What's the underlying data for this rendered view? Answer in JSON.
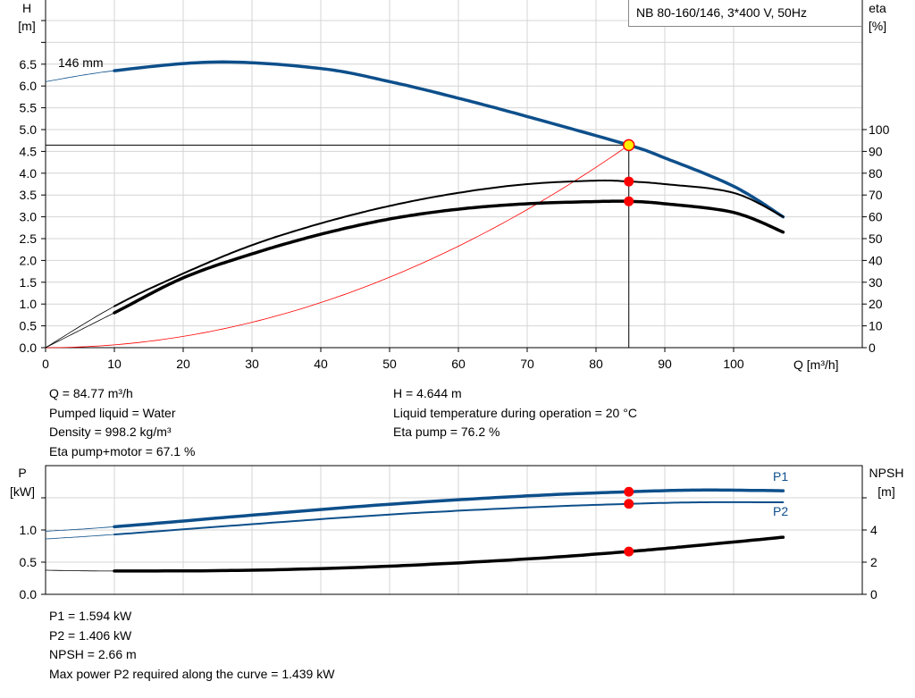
{
  "colors": {
    "grid": "#d4d4d4",
    "head_curve": "#0d4f8b",
    "eta_curve": "#000000",
    "system_curve": "#ff0000",
    "duty_point": "#ff0000",
    "duty_point_highlight": "#ffee00",
    "power_curve": "#0d4f8b",
    "npsh_curve": "#000000"
  },
  "title_box": "NB 80-160/146, 3*400 V, 50Hz",
  "chart_data": [
    {
      "type": "line",
      "xlabel": "Q [m³/h]",
      "ylabel_left": "H",
      "ylabel_left_unit": "[m]",
      "ylabel_right": "eta",
      "ylabel_right_unit": "[%]",
      "xlim": [
        0,
        115
      ],
      "ylim_left": [
        0,
        7.5
      ],
      "ylim_right": [
        0,
        153.7
      ],
      "xticks": [
        "0",
        "10",
        "20",
        "30",
        "40",
        "50",
        "60",
        "70",
        "80",
        "90",
        "100"
      ],
      "yticks_left": [
        "0.0",
        "0.5",
        "1.0",
        "1.5",
        "2.0",
        "2.5",
        "3.0",
        "3.5",
        "4.0",
        "4.5",
        "5.0",
        "5.5",
        "6.0",
        "6.5"
      ],
      "yticks_right": [
        "0",
        "10",
        "20",
        "30",
        "40",
        "50",
        "60",
        "70",
        "80",
        "90",
        "100"
      ],
      "grid": true,
      "annotation": "146 mm",
      "series": [
        {
          "key": "head",
          "axis": "left",
          "x": [
            0,
            10,
            25,
            40,
            50,
            60,
            70,
            84.77,
            90,
            100,
            107.2
          ],
          "y": [
            6.1,
            6.35,
            6.55,
            6.4,
            6.1,
            5.72,
            5.3,
            4.644,
            4.35,
            3.7,
            3.0
          ]
        },
        {
          "key": "eta_pump",
          "axis": "right",
          "x": [
            0,
            10,
            20,
            30,
            40,
            50,
            60,
            70,
            80,
            84.77,
            90,
            100,
            107.2
          ],
          "y": [
            0,
            19,
            34,
            47,
            57,
            65,
            71,
            75,
            76.6,
            76.2,
            75,
            71,
            60
          ]
        },
        {
          "key": "eta_pump_motor",
          "axis": "right",
          "x": [
            0,
            10,
            20,
            30,
            40,
            50,
            60,
            70,
            80,
            84.77,
            90,
            100,
            107.2
          ],
          "y": [
            0,
            16,
            32,
            43,
            52,
            59,
            63.5,
            66,
            67,
            67.1,
            66,
            62,
            53
          ]
        },
        {
          "key": "system",
          "axis": "left",
          "type": "quadratic",
          "x_end": 84.77,
          "y_end": 4.644
        }
      ],
      "duty_point": {
        "Q": 84.77,
        "H": 4.644,
        "eta_pump": 76.2,
        "eta_pump_motor": 67.1
      }
    },
    {
      "type": "line",
      "ylabel_left": "P",
      "ylabel_left_unit": "[kW]",
      "ylabel_right": "NPSH",
      "ylabel_right_unit": "[m]",
      "xlim": [
        0,
        115
      ],
      "ylim_left": [
        0,
        2.0
      ],
      "ylim_right": [
        0,
        8
      ],
      "yticks_left": [
        "0.0",
        "0.5",
        "1.0"
      ],
      "yticks_right": [
        "0",
        "2",
        "4"
      ],
      "grid": true,
      "series": [
        {
          "key": "P1",
          "name": "P1",
          "axis": "left",
          "x": [
            0,
            10,
            30,
            50,
            70,
            84.77,
            95,
            107.2
          ],
          "y": [
            0.98,
            1.05,
            1.23,
            1.4,
            1.53,
            1.594,
            1.62,
            1.61
          ]
        },
        {
          "key": "P2",
          "name": "P2",
          "axis": "left",
          "x": [
            0,
            10,
            30,
            50,
            70,
            84.77,
            95,
            107.2
          ],
          "y": [
            0.86,
            0.93,
            1.09,
            1.24,
            1.35,
            1.406,
            1.43,
            1.43
          ]
        },
        {
          "key": "NPSH",
          "axis": "right",
          "x": [
            0,
            10,
            30,
            50,
            70,
            84.77,
            95,
            107.2
          ],
          "y": [
            1.5,
            1.45,
            1.5,
            1.75,
            2.2,
            2.66,
            3.05,
            3.55
          ]
        }
      ],
      "duty_point": {
        "Q": 84.77,
        "P1": 1.594,
        "P2": 1.406,
        "NPSH": 2.66
      }
    }
  ],
  "info_top_left": [
    "Q = 84.77 m³/h",
    "Pumped liquid = Water",
    "Density = 998.2 kg/m³",
    "Eta pump+motor = 67.1 %"
  ],
  "info_top_right": [
    "H = 4.644 m",
    "Liquid temperature during operation = 20 °C",
    "Eta pump = 76.2 %"
  ],
  "info_bottom": [
    "P1 = 1.594 kW",
    "P2 = 1.406 kW",
    "NPSH = 2.66 m",
    "Max power P2 required along the curve = 1.439 kW"
  ]
}
